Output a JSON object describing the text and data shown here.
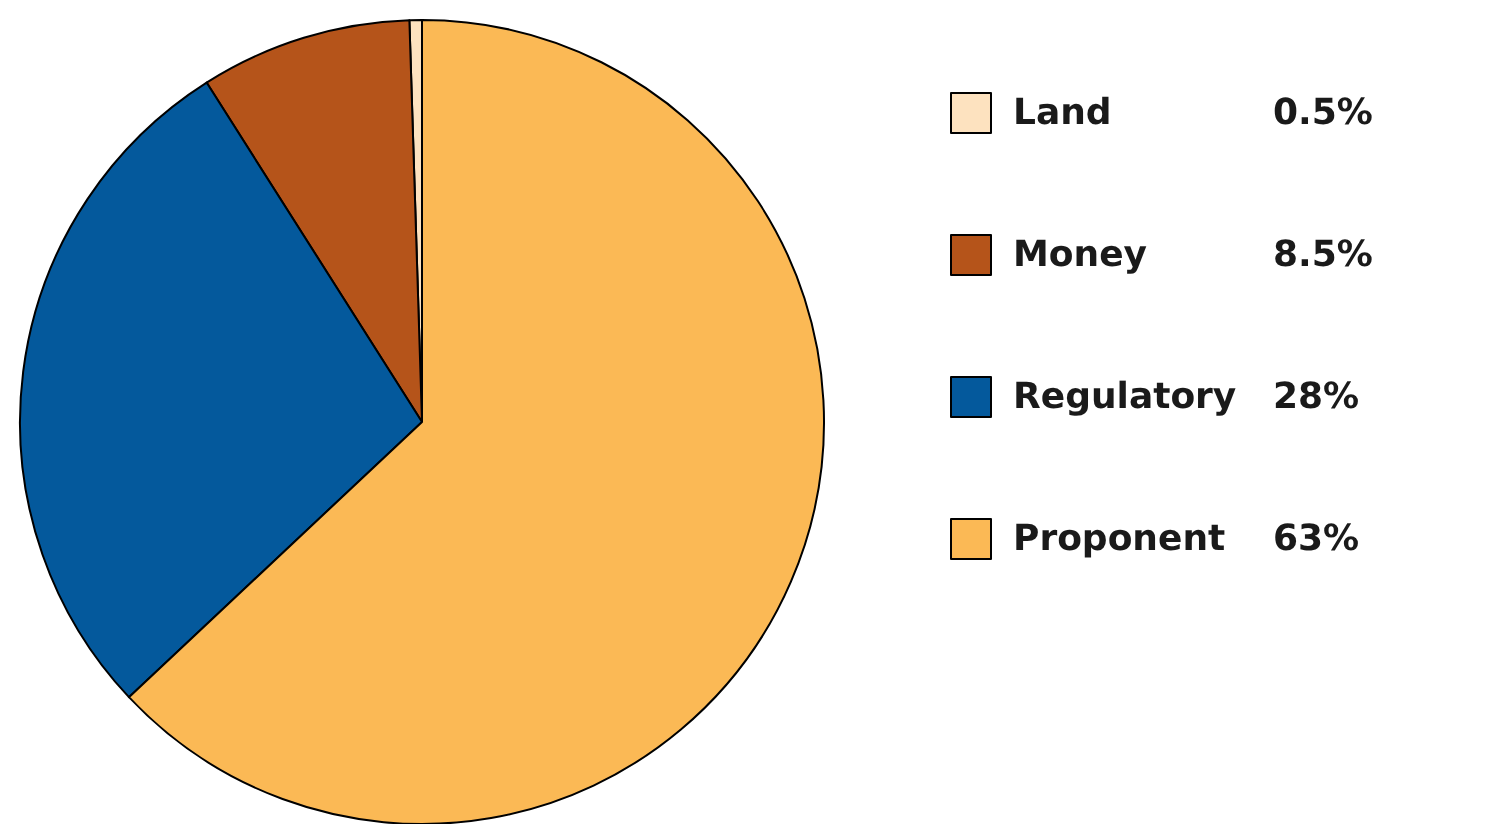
{
  "chart_data": {
    "type": "pie",
    "categories": [
      "Land",
      "Money",
      "Regulatory",
      "Proponent"
    ],
    "values": [
      0.5,
      8.5,
      28,
      63
    ],
    "colors": [
      "#fde2bf",
      "#b5541a",
      "#04599c",
      "#fbb955"
    ],
    "value_labels": [
      "0.5%",
      "8.5%",
      "28%",
      "63%"
    ],
    "legend": "right"
  }
}
